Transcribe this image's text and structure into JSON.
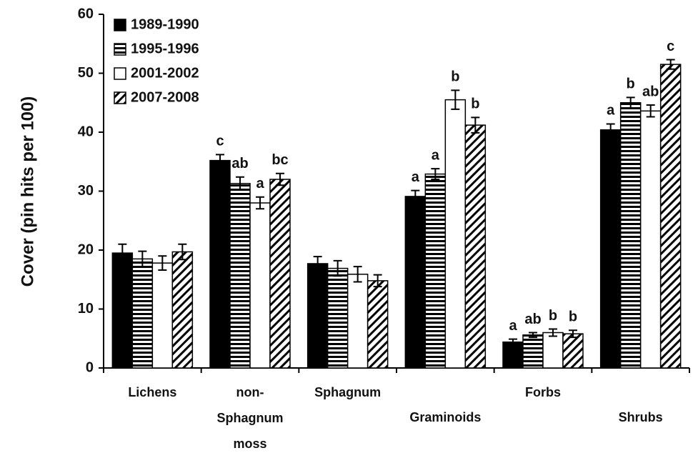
{
  "chart_data": {
    "type": "bar",
    "y_label": "Cover (pin hits per 100)",
    "categories": [
      [
        "Lichens"
      ],
      [
        "non-",
        "Sphagnum",
        "moss"
      ],
      [
        "Sphagnum"
      ],
      [
        "Graminoids"
      ],
      [
        "Forbs"
      ],
      [
        "Shrubs"
      ]
    ],
    "series": [
      {
        "name": "1989-1990",
        "color": "#000000",
        "pattern": "solid",
        "values": [
          19.5,
          35.2,
          17.7,
          29.1,
          4.4,
          40.4
        ],
        "errors": [
          1.5,
          1.0,
          1.2,
          1.0,
          0.5,
          1.0
        ],
        "letters": [
          null,
          "c",
          null,
          "a",
          "a",
          "a"
        ]
      },
      {
        "name": "1995-1996",
        "color": "#000000",
        "pattern": "horizontal",
        "values": [
          18.5,
          31.3,
          16.9,
          32.9,
          5.6,
          45.0
        ],
        "errors": [
          1.3,
          1.1,
          1.3,
          0.9,
          0.4,
          0.9
        ],
        "letters": [
          null,
          "ab",
          null,
          "a",
          "ab",
          "b"
        ]
      },
      {
        "name": "2001-2002",
        "color": "#000000",
        "pattern": "none",
        "values": [
          17.8,
          28.0,
          15.9,
          45.5,
          6.0,
          43.6
        ],
        "errors": [
          1.2,
          1.0,
          1.3,
          1.6,
          0.6,
          1.0
        ],
        "letters": [
          null,
          "a",
          null,
          "b",
          "b",
          "ab"
        ]
      },
      {
        "name": "2007-2008",
        "color": "#000000",
        "pattern": "diagonal",
        "values": [
          19.7,
          32.0,
          14.8,
          41.2,
          5.8,
          51.5
        ],
        "errors": [
          1.3,
          1.0,
          1.0,
          1.3,
          0.6,
          0.8
        ],
        "letters": [
          null,
          "bc",
          null,
          "b",
          "b",
          "c"
        ]
      }
    ],
    "ylim": [
      0,
      60
    ],
    "yticks": [
      0,
      10,
      20,
      30,
      40,
      50,
      60
    ],
    "legend": "upper left"
  }
}
